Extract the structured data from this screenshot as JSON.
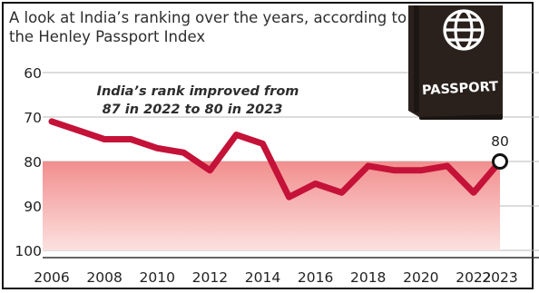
{
  "title": "A look at India’s ranking over the years, according to the Henley Passport Index",
  "annotation": {
    "line1": "India’s rank improved from",
    "line2": "87 in 2022 to 80 in 2023"
  },
  "passport_label": "PASSPORT",
  "colors": {
    "line": "#c41238",
    "fill_top": "#f28e8e",
    "fill_bottom": "#fbe1df",
    "grid": "#b9b9b9",
    "passport": "#2a211c",
    "passport_text": "#ffffff"
  },
  "chart_data": {
    "type": "line",
    "x": [
      2006,
      2007,
      2008,
      2009,
      2010,
      2011,
      2012,
      2013,
      2014,
      2015,
      2016,
      2017,
      2018,
      2019,
      2020,
      2021,
      2022,
      2023
    ],
    "values": [
      71,
      73,
      75,
      75,
      77,
      78,
      82,
      74,
      76,
      88,
      85,
      87,
      81,
      82,
      82,
      81,
      87,
      80
    ],
    "xlim": [
      2006,
      2023
    ],
    "ylim": [
      100,
      60
    ],
    "y_inverted": true,
    "xticks": [
      2006,
      2008,
      2010,
      2012,
      2014,
      2016,
      2018,
      2020,
      2022,
      2023
    ],
    "xtick_labels": [
      "2006",
      "2008",
      "2010",
      "2012",
      "2014",
      "2016",
      "2018",
      "2020",
      "2022",
      "2023"
    ],
    "yticks": [
      60,
      70,
      80,
      90,
      100
    ],
    "ytick_labels": [
      "60",
      "70",
      "80",
      "90",
      "100"
    ],
    "grid": "horizontal",
    "point_labels": [
      {
        "x": 2023,
        "y": 80,
        "text": "80"
      }
    ]
  }
}
